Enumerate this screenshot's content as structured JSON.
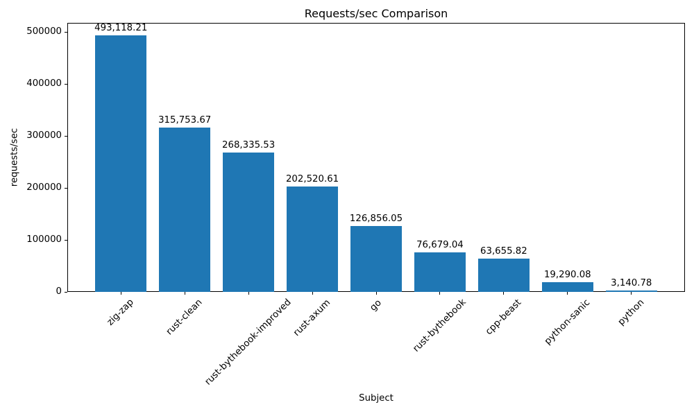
{
  "chart_data": {
    "type": "bar",
    "title": "Requests/sec Comparison",
    "xlabel": "Subject",
    "ylabel": "requests/sec",
    "categories": [
      "zig-zap",
      "rust-clean",
      "rust-bythebook-improved",
      "rust-axum",
      "go",
      "rust-bythebook",
      "cpp-beast",
      "python-sanic",
      "python"
    ],
    "values": [
      493118.21,
      315753.67,
      268335.53,
      202520.61,
      126856.05,
      76679.04,
      63655.82,
      19290.08,
      3140.78
    ],
    "bar_value_labels": [
      "493,118.21",
      "315,753.67",
      "268,335.53",
      "202,520.61",
      "126,856.05",
      "76,679.04",
      "63,655.82",
      "19,290.08",
      "3,140.78"
    ],
    "ytick_values": [
      0,
      100000,
      200000,
      300000,
      400000,
      500000
    ],
    "ytick_labels": [
      "0",
      "100000",
      "200000",
      "300000",
      "400000",
      "500000"
    ],
    "ylim": [
      0,
      517774.12
    ],
    "bar_color": "#1f77b4",
    "text_color": "#000000",
    "grid": false,
    "legend": null,
    "x_tick_rotation_deg": 45
  }
}
